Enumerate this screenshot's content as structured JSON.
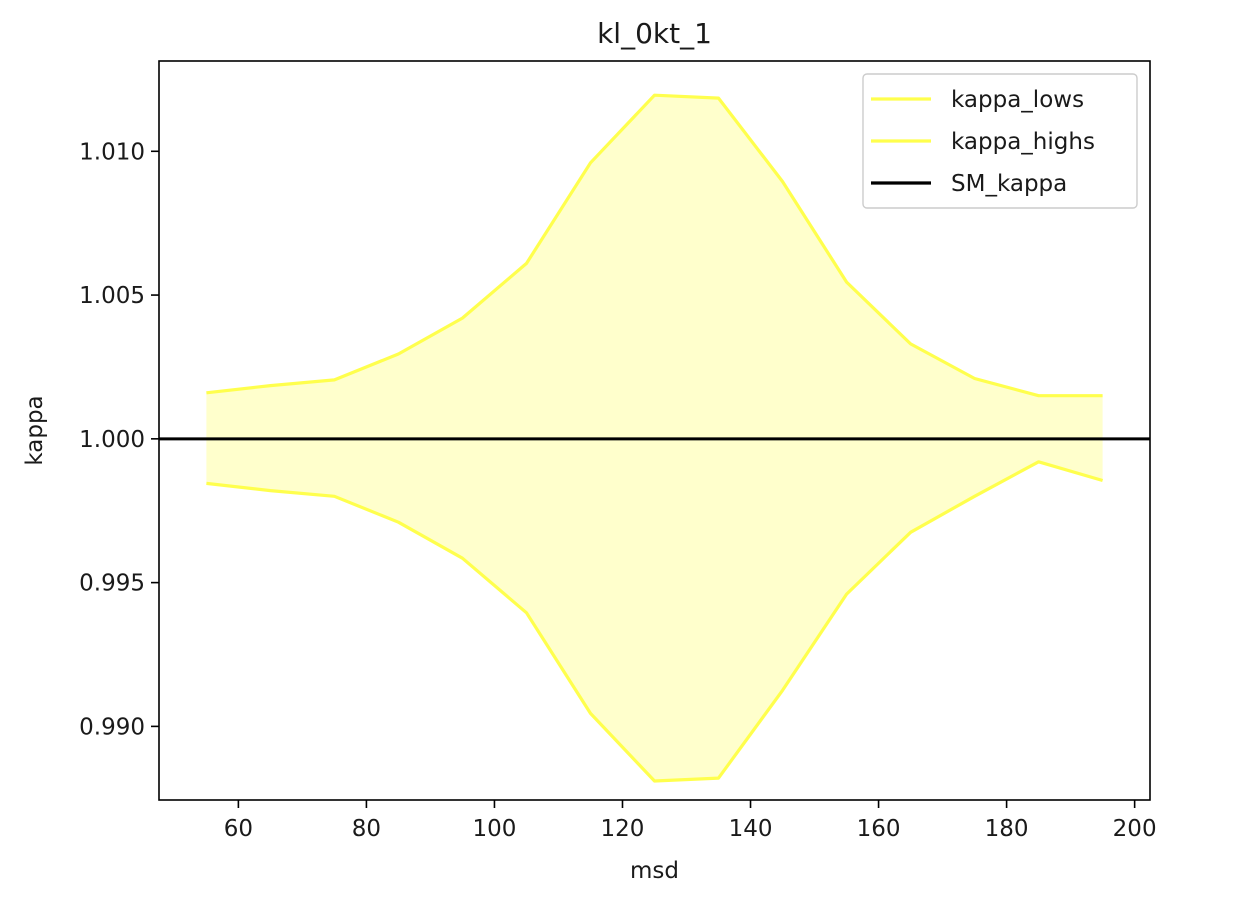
{
  "chart_data": {
    "type": "line",
    "title": "kl_0kt_1",
    "xlabel": "msd",
    "ylabel": "kappa",
    "xlim": [
      47.6,
      202.4
    ],
    "ylim": [
      0.98744,
      1.01314
    ],
    "xticks": [
      60,
      80,
      100,
      120,
      140,
      160,
      180,
      200
    ],
    "xtick_labels": [
      "60",
      "80",
      "100",
      "120",
      "140",
      "160",
      "180",
      "200"
    ],
    "yticks": [
      0.99,
      0.995,
      1.0,
      1.005,
      1.01
    ],
    "ytick_labels": [
      "0.990",
      "0.995",
      "1.000",
      "1.005",
      "1.010"
    ],
    "x": [
      55,
      65,
      75,
      85,
      95,
      105,
      115,
      125,
      135,
      145,
      155,
      165,
      175,
      185,
      195
    ],
    "series": [
      {
        "name": "kappa_lows",
        "color": "#ffff4d",
        "values": [
          0.99845,
          0.9982,
          0.998,
          0.9971,
          0.99585,
          0.99395,
          0.99045,
          0.9881,
          0.9882,
          0.99125,
          0.9946,
          0.99675,
          0.998,
          0.9992,
          0.99855
        ]
      },
      {
        "name": "kappa_highs",
        "color": "#ffff4d",
        "values": [
          1.0016,
          1.00185,
          1.00205,
          1.00295,
          1.0042,
          1.0061,
          1.0096,
          1.01195,
          1.01185,
          1.00895,
          1.00545,
          1.0033,
          1.0021,
          1.0015,
          1.0015
        ]
      },
      {
        "name": "SM_kappa",
        "color": "#000000",
        "values": [
          1.0,
          1.0,
          1.0,
          1.0,
          1.0,
          1.0,
          1.0,
          1.0,
          1.0,
          1.0,
          1.0,
          1.0,
          1.0,
          1.0,
          1.0
        ]
      }
    ],
    "fill_color": "#ffffcc",
    "grid": false,
    "legend_position": "top-right"
  }
}
